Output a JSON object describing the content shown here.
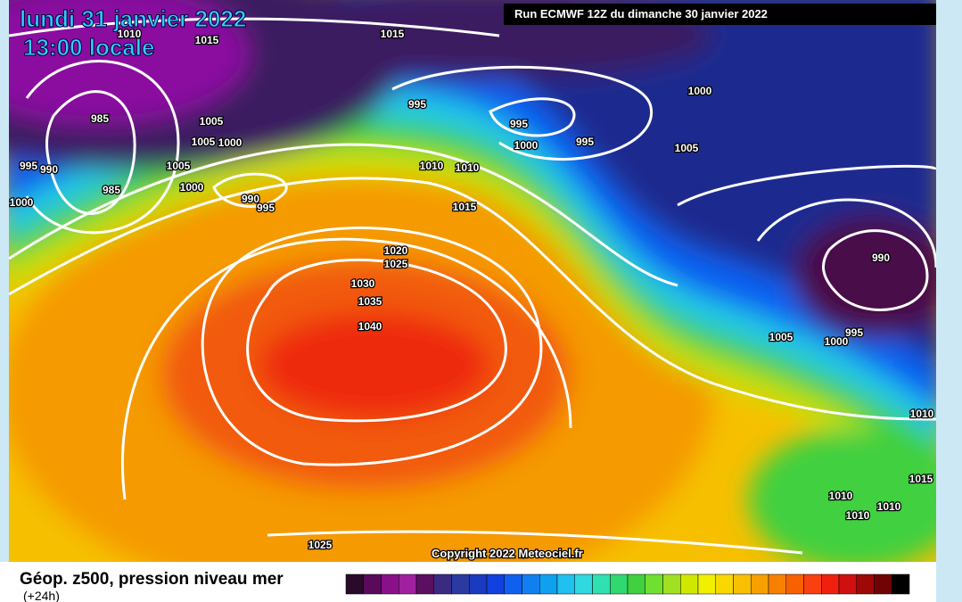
{
  "header": {
    "date": "lundi 31 janvier 2022",
    "time": "13:00 locale",
    "run": "Run ECMWF 12Z du dimanche 30 janvier 2022"
  },
  "map": {
    "copyright": "Copyright 2022 Meteociel.fr",
    "isobar_labels": [
      "1015",
      "1010",
      "1015",
      "985",
      "1005",
      "1005",
      "1000",
      "995",
      "990",
      "1005",
      "985",
      "1000",
      "990",
      "995",
      "1000",
      "995",
      "995",
      "1000",
      "995",
      "1000",
      "1005",
      "1010",
      "1010",
      "1015",
      "1020",
      "1025",
      "1030",
      "1035",
      "1040",
      "990",
      "1005",
      "1000",
      "995",
      "1010",
      "1015",
      "1010",
      "1010",
      "1010",
      "1025"
    ]
  },
  "footer": {
    "title": "Géop. z500, pression niveau mer",
    "lead": "(+24h)"
  }
}
